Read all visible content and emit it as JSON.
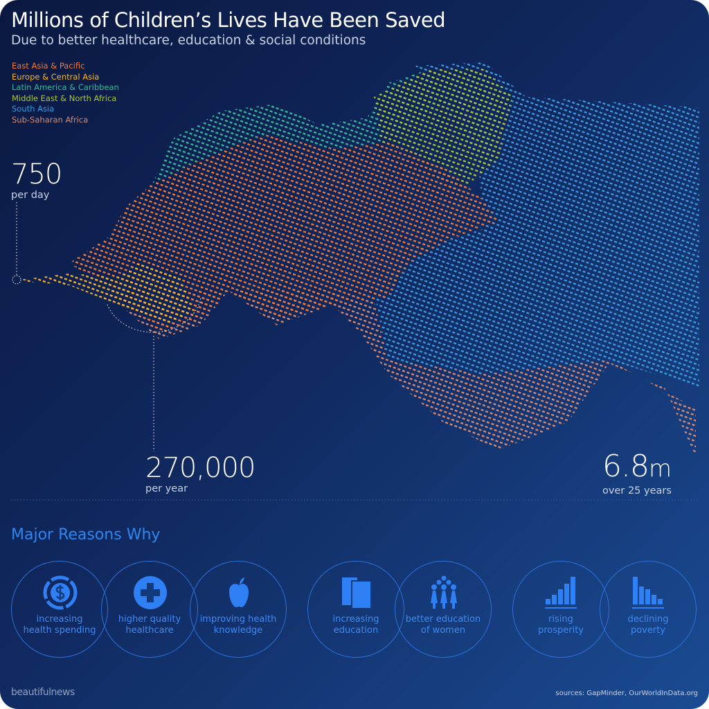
{
  "title": "Millions of Children’s Lives Have Been Saved",
  "subtitle": "Due to better healthcare, education & social conditions",
  "legend": [
    {
      "label": "East Asia & Pacific",
      "color": "#f07a3a"
    },
    {
      "label": "Europe & Central Asia",
      "color": "#f5b32e"
    },
    {
      "label": "Latin America & Caribbean",
      "color": "#35b89c"
    },
    {
      "label": "Middle East & North Africa",
      "color": "#a9c63a"
    },
    {
      "label": "South Asia",
      "color": "#3a9be0"
    },
    {
      "label": "Sub-Saharan Africa",
      "color": "#d98a6e"
    }
  ],
  "stats": {
    "per_day": {
      "value": "750",
      "label": "per day"
    },
    "per_year": {
      "value": "270,000",
      "label": "per year"
    },
    "total": {
      "value": "6.8",
      "unit": "m",
      "label": "over 25 years"
    }
  },
  "reasons_title": "Major Reasons Why",
  "reasons": [
    {
      "icon": "dollar-coin-icon",
      "line1": "increasing",
      "line2": "health spending"
    },
    {
      "icon": "medical-cross-icon",
      "line1": "higher quality",
      "line2": "healthcare"
    },
    {
      "icon": "apple-icon",
      "line1": "improving health",
      "line2": "knowledge"
    },
    {
      "icon": "books-icon",
      "line1": "increasing",
      "line2": "education"
    },
    {
      "icon": "women-group-icon",
      "line1": "better education",
      "line2": "of women"
    },
    {
      "icon": "rising-bars-icon",
      "line1": "rising",
      "line2": "prosperity"
    },
    {
      "icon": "declining-bars-icon",
      "line1": "declining",
      "line2": "poverty"
    }
  ],
  "brand": "beautifulnews",
  "sources": "sources: GapMinder, OurWorldInData.org",
  "accent": "#2e86f0"
}
